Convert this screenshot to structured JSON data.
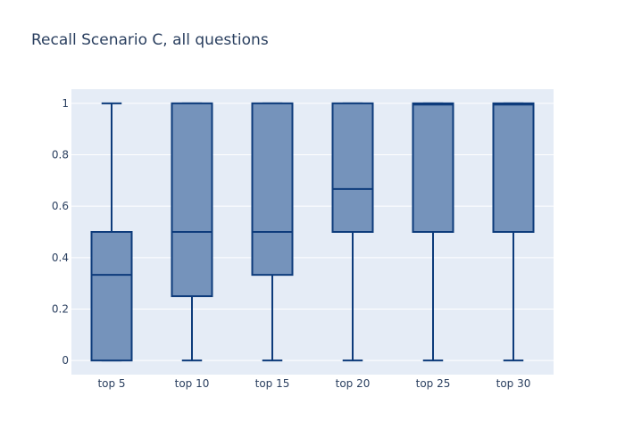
{
  "chart_data": {
    "type": "box",
    "title": "Recall Scenario C, all questions",
    "xlabel": "",
    "ylabel": "",
    "ylim": [
      -0.055,
      1.055
    ],
    "yticks": [
      0,
      0.2,
      0.4,
      0.6,
      0.8,
      1
    ],
    "ytick_labels": [
      "0",
      "0.2",
      "0.4",
      "0.6",
      "0.8",
      "1"
    ],
    "grid": true,
    "categories": [
      "top 5",
      "top 10",
      "top 15",
      "top 20",
      "top 25",
      "top 30"
    ],
    "boxes": [
      {
        "category": "top 5",
        "min": 0,
        "q1": 0,
        "median": 0.333,
        "q3": 0.5,
        "max": 1
      },
      {
        "category": "top 10",
        "min": 0,
        "q1": 0.25,
        "median": 0.5,
        "q3": 1,
        "max": 1
      },
      {
        "category": "top 15",
        "min": 0,
        "q1": 0.333,
        "median": 0.5,
        "q3": 1,
        "max": 1
      },
      {
        "category": "top 20",
        "min": 0,
        "q1": 0.5,
        "median": 0.667,
        "q3": 1,
        "max": 1
      },
      {
        "category": "top 25",
        "min": 0,
        "q1": 0.5,
        "median": 0.995,
        "q3": 1,
        "max": 1
      },
      {
        "category": "top 30",
        "min": 0,
        "q1": 0.5,
        "median": 0.995,
        "q3": 1,
        "max": 1
      }
    ],
    "colors": {
      "box_fill": "#7593bb",
      "box_line": "#0d3b7b",
      "plot_bg": "#e5ecf6",
      "grid": "#ffffff",
      "text": "#2a3f5f"
    }
  }
}
